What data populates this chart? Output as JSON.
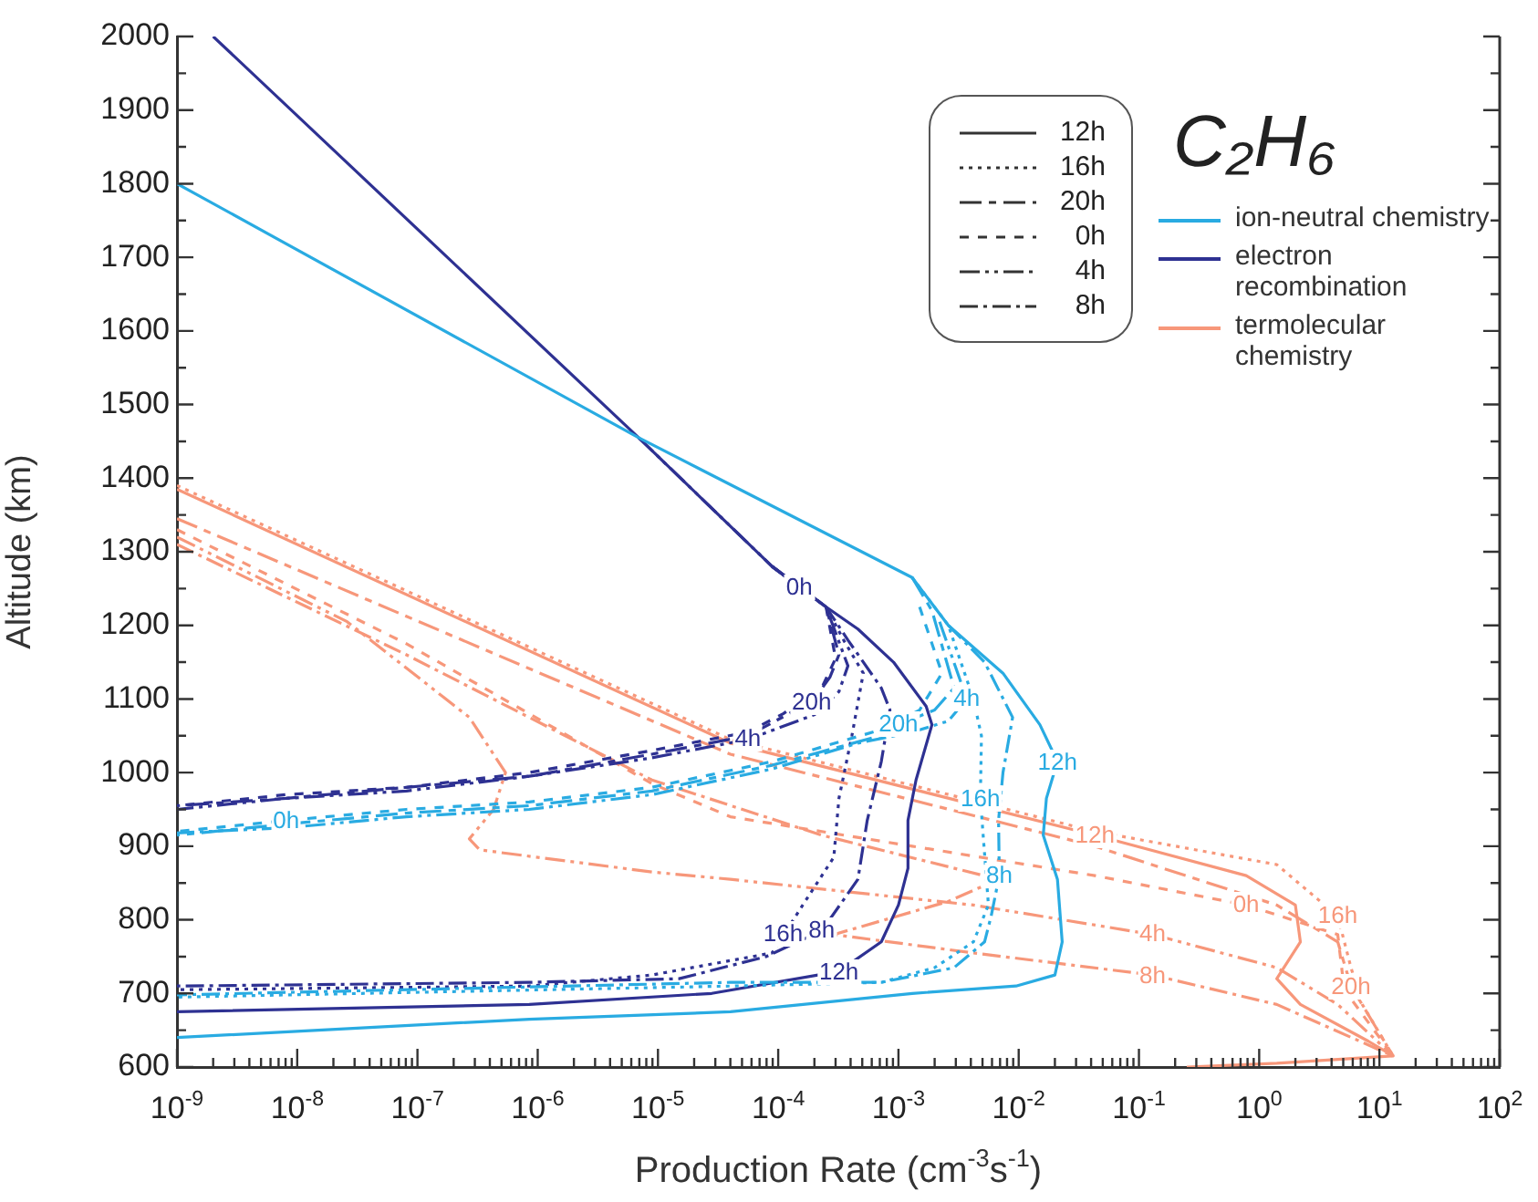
{
  "chart_data": {
    "type": "line",
    "title": "C₂H₆",
    "xlabel": "Production Rate (cm$^{-3}$s$^{-1}$)",
    "ylabel": "Altitude (km)",
    "log": "x",
    "xlim": [
      1e-09,
      100
    ],
    "ylim": [
      600,
      2000
    ],
    "xticks": [
      {
        "value": 1e-09,
        "label": "10$^{-9}$"
      },
      {
        "value": 2e-09,
        "label": null
      },
      {
        "value": 3e-09,
        "label": null
      },
      {
        "value": 4e-09,
        "label": null
      },
      {
        "value": 5e-09,
        "label": null
      },
      {
        "value": 6e-09,
        "label": null
      },
      {
        "value": 7e-09,
        "label": null
      },
      {
        "value": 8e-09,
        "label": null
      },
      {
        "value": 9e-09,
        "label": null
      },
      {
        "value": 1e-08,
        "label": "10$^{-8}$"
      },
      {
        "value": 2e-08,
        "label": null
      },
      {
        "value": 3e-08,
        "label": null
      },
      {
        "value": 4e-08,
        "label": null
      },
      {
        "value": 5e-08,
        "label": null
      },
      {
        "value": 6e-08,
        "label": null
      },
      {
        "value": 7e-08,
        "label": null
      },
      {
        "value": 8e-08,
        "label": null
      },
      {
        "value": 9e-08,
        "label": null
      },
      {
        "value": 1e-07,
        "label": "10$^{-7}$"
      },
      {
        "value": 2e-07,
        "label": null
      },
      {
        "value": 3e-07,
        "label": null
      },
      {
        "value": 4e-07,
        "label": null
      },
      {
        "value": 5e-07,
        "label": null
      },
      {
        "value": 6e-07,
        "label": null
      },
      {
        "value": 7e-07,
        "label": null
      },
      {
        "value": 8e-07,
        "label": null
      },
      {
        "value": 9e-07,
        "label": null
      },
      {
        "value": 1e-06,
        "label": "10$^{-6}$"
      },
      {
        "value": 2e-06,
        "label": null
      },
      {
        "value": 3e-06,
        "label": null
      },
      {
        "value": 4e-06,
        "label": null
      },
      {
        "value": 5e-06,
        "label": null
      },
      {
        "value": 6e-06,
        "label": null
      },
      {
        "value": 7e-06,
        "label": null
      },
      {
        "value": 8e-06,
        "label": null
      },
      {
        "value": 9e-06,
        "label": null
      },
      {
        "value": 1e-05,
        "label": "10$^{-5}$"
      },
      {
        "value": 2e-05,
        "label": null
      },
      {
        "value": 3e-05,
        "label": null
      },
      {
        "value": 4e-05,
        "label": null
      },
      {
        "value": 5e-05,
        "label": null
      },
      {
        "value": 6e-05,
        "label": null
      },
      {
        "value": 7e-05,
        "label": null
      },
      {
        "value": 8e-05,
        "label": null
      },
      {
        "value": 9e-05,
        "label": null
      },
      {
        "value": 0.0001,
        "label": "10$^{-4}$"
      },
      {
        "value": 0.0002,
        "label": null
      },
      {
        "value": 0.0003,
        "label": null
      },
      {
        "value": 0.0004,
        "label": null
      },
      {
        "value": 0.0005,
        "label": null
      },
      {
        "value": 0.0006,
        "label": null
      },
      {
        "value": 0.0007,
        "label": null
      },
      {
        "value": 0.0008,
        "label": null
      },
      {
        "value": 0.0009,
        "label": null
      },
      {
        "value": 0.001,
        "label": "10$^{-3}$"
      },
      {
        "value": 0.002,
        "label": null
      },
      {
        "value": 0.003,
        "label": null
      },
      {
        "value": 0.004,
        "label": null
      },
      {
        "value": 0.005,
        "label": null
      },
      {
        "value": 0.006,
        "label": null
      },
      {
        "value": 0.007,
        "label": null
      },
      {
        "value": 0.008,
        "label": null
      },
      {
        "value": 0.009,
        "label": null
      },
      {
        "value": 0.01,
        "label": "10$^{-2}$"
      },
      {
        "value": 0.02,
        "label": null
      },
      {
        "value": 0.03,
        "label": null
      },
      {
        "value": 0.04,
        "label": null
      },
      {
        "value": 0.05,
        "label": null
      },
      {
        "value": 0.06,
        "label": null
      },
      {
        "value": 0.07,
        "label": null
      },
      {
        "value": 0.08,
        "label": null
      },
      {
        "value": 0.09,
        "label": null
      },
      {
        "value": 0.1,
        "label": "10$^{-1}$"
      },
      {
        "value": 0.2,
        "label": null
      },
      {
        "value": 0.3,
        "label": null
      },
      {
        "value": 0.4,
        "label": null
      },
      {
        "value": 0.5,
        "label": null
      },
      {
        "value": 0.6,
        "label": null
      },
      {
        "value": 0.7,
        "label": null
      },
      {
        "value": 0.8,
        "label": null
      },
      {
        "value": 0.9,
        "label": null
      },
      {
        "value": 1,
        "label": "10$^{0}$"
      },
      {
        "value": 2,
        "label": null
      },
      {
        "value": 3,
        "label": null
      },
      {
        "value": 4,
        "label": null
      },
      {
        "value": 5,
        "label": null
      },
      {
        "value": 6,
        "label": null
      },
      {
        "value": 7,
        "label": null
      },
      {
        "value": 8,
        "label": null
      },
      {
        "value": 9,
        "label": null
      },
      {
        "value": 10,
        "label": "10$^{1}$"
      },
      {
        "value": 20,
        "label": null
      },
      {
        "value": 30,
        "label": null
      },
      {
        "value": 40,
        "label": null
      },
      {
        "value": 50,
        "label": null
      },
      {
        "value": 60,
        "label": null
      },
      {
        "value": 70,
        "label": null
      },
      {
        "value": 80,
        "label": null
      },
      {
        "value": 90,
        "label": null
      },
      {
        "value": 100,
        "label": "10$^{2}$"
      }
    ],
    "yticks": [
      600,
      {
        "value": 650,
        "label": null
      },
      700,
      {
        "value": 750,
        "label": null
      },
      800,
      {
        "value": 850,
        "label": null
      },
      900,
      {
        "value": 950,
        "label": null
      },
      1000,
      {
        "value": 1050,
        "label": null
      },
      1100,
      {
        "value": 1150,
        "label": null
      },
      1200,
      {
        "value": 1250,
        "label": null
      },
      1300,
      {
        "value": 1350,
        "label": null
      },
      1400,
      {
        "value": 1450,
        "label": null
      },
      1500,
      {
        "value": 1550,
        "label": null
      },
      1600,
      {
        "value": 1650,
        "label": null
      },
      1700,
      {
        "value": 1750,
        "label": null
      },
      1800,
      {
        "value": 1850,
        "label": null
      },
      1900,
      {
        "value": 1950,
        "label": null
      },
      2000
    ],
    "series": [
      {
        "color": "#29abe2",
        "line_style": "solid",
        "x": [
          1e-09,
          6.9e-06,
          0.0013,
          0.0026,
          0.0074,
          0.015,
          0.021,
          0.017,
          0.016,
          0.021,
          0.023,
          0.02,
          0.0095,
          0.0013,
          4e-05,
          8.5e-07,
          1e-09
        ],
        "values": [
          1800,
          1455,
          1265,
          1200,
          1135,
          1065,
          1015,
          965,
          915,
          855,
          770,
          725,
          710,
          700,
          675,
          665,
          640
        ]
      },
      {
        "color": "#29abe2",
        "line_style": "dotted",
        "x": [
          0.0013,
          0.0026,
          0.0042,
          0.0049,
          0.0048,
          0.0052,
          0.0056,
          0.0042,
          0.002,
          0.00072,
          4e-05,
          1e-09
        ],
        "values": [
          1265,
          1200,
          1100,
          1050,
          965,
          890,
          820,
          770,
          735,
          715,
          710,
          695
        ]
      },
      {
        "color": "#29abe2",
        "line_style": "longdashdash",
        "x": [
          0.0013,
          0.0019,
          0.0029,
          0.002,
          0.001,
          0.00091,
          8.9e-05,
          8.9e-06,
          8.5e-07,
          8.1e-08,
          8.1e-09,
          1e-09
        ],
        "values": [
          1265,
          1220,
          1115,
          1085,
          1065,
          1055,
          1010,
          975,
          955,
          945,
          930,
          915
        ]
      },
      {
        "color": "#29abe2",
        "line_style": "dashed",
        "x": [
          0.0015,
          0.0023,
          0.0015,
          0.00078,
          8.9e-05,
          8.9e-06,
          8.5e-07,
          8.1e-08,
          8.1e-09,
          1e-09
        ],
        "values": [
          1225,
          1135,
          1085,
          1060,
          1015,
          980,
          960,
          950,
          935,
          920
        ]
      },
      {
        "color": "#29abe2",
        "line_style": "dashdotdot",
        "x": [
          0.0022,
          0.0037,
          0.0026,
          0.0013,
          0.00046,
          8.9e-05,
          8.9e-06,
          8.5e-07,
          8.1e-08,
          8.1e-09,
          1e-09
        ],
        "values": [
          1205,
          1100,
          1070,
          1055,
          1040,
          1005,
          970,
          950,
          940,
          925,
          918
        ]
      },
      {
        "color": "#29abe2",
        "line_style": "dashdot",
        "x": [
          0.0026,
          0.0052,
          0.0089,
          0.0074,
          0.0068,
          0.0069,
          0.0059,
          0.0052,
          0.0029,
          0.00072,
          4e-05,
          1e-09
        ],
        "values": [
          1200,
          1150,
          1075,
          1000,
          935,
          860,
          805,
          770,
          735,
          715,
          715,
          698
        ]
      },
      {
        "color": "#2e3192",
        "line_style": "solid",
        "x": [
          2e-09,
          6.9e-06,
          8.9e-05,
          0.00025,
          0.00046,
          0.00091,
          0.0017,
          0.0019,
          0.0014,
          0.0012,
          0.0012,
          0.001,
          0.00072,
          0.00032,
          2.8e-05,
          8.5e-07,
          1e-09
        ],
        "values": [
          2000,
          1455,
          1280,
          1225,
          1195,
          1150,
          1090,
          1065,
          990,
          935,
          870,
          820,
          770,
          730,
          700,
          685,
          675
        ]
      },
      {
        "color": "#2e3192",
        "line_style": "dotted",
        "x": [
          0.00025,
          0.00035,
          0.00051,
          0.00041,
          0.00032,
          0.00029,
          0.00016,
          8.9e-05,
          8.9e-06,
          8.5e-07,
          1e-09
        ],
        "values": [
          1225,
          1180,
          1135,
          1050,
          965,
          885,
          820,
          755,
          725,
          710,
          705
        ]
      },
      {
        "color": "#2e3192",
        "line_style": "longdashdash",
        "x": [
          8.9e-05,
          0.00025,
          0.00032,
          0.00027,
          0.00019,
          0.00014,
          5.6e-05,
          8.9e-06,
          8.5e-07,
          8.1e-08,
          8.1e-09,
          1e-09
        ],
        "values": [
          1280,
          1225,
          1160,
          1130,
          1095,
          1085,
          1050,
          1025,
          995,
          980,
          965,
          955
        ]
      },
      {
        "color": "#2e3192",
        "line_style": "dashed",
        "x": [
          0.00025,
          0.0003,
          0.00023,
          0.00011,
          5.6e-05,
          8.9e-06,
          8.5e-07,
          8.1e-08,
          8.1e-09,
          1e-09
        ],
        "values": [
          1225,
          1155,
          1115,
          1080,
          1055,
          1030,
          1000,
          980,
          970,
          955
        ]
      },
      {
        "color": "#2e3192",
        "line_style": "dashdotdot",
        "x": [
          6.9e-06,
          8.9e-05,
          0.00025,
          0.00038,
          0.00032,
          0.00021,
          5.6e-05,
          8.9e-06,
          8.5e-07,
          8.1e-08,
          8.1e-09,
          1e-09
        ],
        "values": [
          1455,
          1280,
          1225,
          1145,
          1110,
          1080,
          1045,
          1020,
          995,
          975,
          965,
          950
        ]
      },
      {
        "color": "#2e3192",
        "line_style": "dashdot",
        "x": [
          8.9e-05,
          0.00025,
          0.00038,
          0.00072,
          0.00085,
          0.00072,
          0.00055,
          0.00046,
          0.00023,
          7.9e-05,
          1.5e-05,
          8.5e-07,
          1e-09
        ],
        "values": [
          1280,
          1225,
          1180,
          1115,
          1085,
          1015,
          935,
          855,
          785,
          750,
          720,
          715,
          710
        ]
      },
      {
        "color": "#f7977a",
        "line_style": "solid",
        "x": [
          1e-09,
          4e-05,
          0.043,
          0.78,
          2.0,
          2.2,
          1.4,
          2.2,
          8.1,
          13,
          1.4,
          0.25
        ],
        "values": [
          1385,
          1040,
          915,
          860,
          820,
          770,
          720,
          685,
          635,
          615,
          605,
          600
        ]
      },
      {
        "color": "#f7977a",
        "line_style": "dotted",
        "x": [
          1e-09,
          4e-05,
          0.043,
          1.4,
          4.5,
          5.8,
          7.2,
          13
        ],
        "values": [
          1390,
          1045,
          920,
          875,
          805,
          735,
          685,
          615
        ]
      },
      {
        "color": "#f7977a",
        "line_style": "longdashdash",
        "x": [
          1e-09,
          4e-05,
          0.043,
          1.4,
          4.5,
          5.8,
          13
        ],
        "values": [
          1345,
          1025,
          900,
          820,
          770,
          710,
          615
        ]
      },
      {
        "color": "#f7977a",
        "line_style": "dashed",
        "x": [
          1e-09,
          8.1e-08,
          8.9e-06,
          4e-05,
          0.0013,
          0.043,
          0.78,
          4.5,
          5.1,
          13
        ],
        "values": [
          1330,
          1175,
          985,
          940,
          900,
          860,
          820,
          780,
          705,
          615
        ]
      },
      {
        "color": "#f7977a",
        "line_style": "dashdotdot",
        "x": [
          1e-09,
          2.6e-08,
          2.7e-07,
          5.4e-07,
          4.3e-07,
          2.7e-07,
          3.3e-07,
          8.9e-06,
          4e-05,
          0.0042,
          0.13,
          1.4,
          4.5,
          13
        ],
        "values": [
          1320,
          1205,
          1075,
          1000,
          950,
          910,
          895,
          865,
          855,
          820,
          780,
          735,
          685,
          615
        ]
      },
      {
        "color": "#f7977a",
        "line_style": "dashdot",
        "x": [
          1e-09,
          8.1e-08,
          8.9e-06,
          0.00023,
          0.0068,
          0.0026,
          0.00029,
          0.0042,
          0.13,
          1.4,
          13
        ],
        "values": [
          1310,
          1160,
          990,
          915,
          855,
          825,
          780,
          755,
          725,
          685,
          615
        ]
      }
    ],
    "annotations": [
      "12h",
      "16h",
      "20h",
      "0h",
      "4h",
      "8h",
      "ion-neutral chemistry",
      "electron recombination",
      "termolecular chemistry",
      {
        "text": "0h",
        "x": 0.00015,
        "y": 1252
      },
      {
        "text": "20h",
        "x": 0.00019,
        "y": 1095
      },
      {
        "text": "4h",
        "x": 5.6e-05,
        "y": 1045
      },
      {
        "text": "0h",
        "x": 8.1e-09,
        "y": 935
      },
      {
        "text": "16h",
        "x": 0.00011,
        "y": 781
      },
      {
        "text": "8h",
        "x": 0.00023,
        "y": 785
      },
      {
        "text": "12h",
        "x": 0.00032,
        "y": 730
      },
      {
        "text": "20h",
        "x": 0.001,
        "y": 1065
      },
      {
        "text": "4h",
        "x": 0.0037,
        "y": 1100
      },
      {
        "text": "16h",
        "x": 0.0048,
        "y": 965
      },
      {
        "text": "8h",
        "x": 0.0069,
        "y": 860
      },
      {
        "text": "12h",
        "x": 0.021,
        "y": 1015
      },
      {
        "text": "12h",
        "x": 0.043,
        "y": 915
      },
      {
        "text": "16h",
        "x": 4.5,
        "y": 805
      },
      {
        "text": "0h",
        "x": 0.78,
        "y": 820
      },
      {
        "text": "4h",
        "x": 0.13,
        "y": 780
      },
      {
        "text": "20h",
        "x": 5.8,
        "y": 710
      },
      {
        "text": "8h",
        "x": 0.13,
        "y": 725
      }
    ]
  }
}
